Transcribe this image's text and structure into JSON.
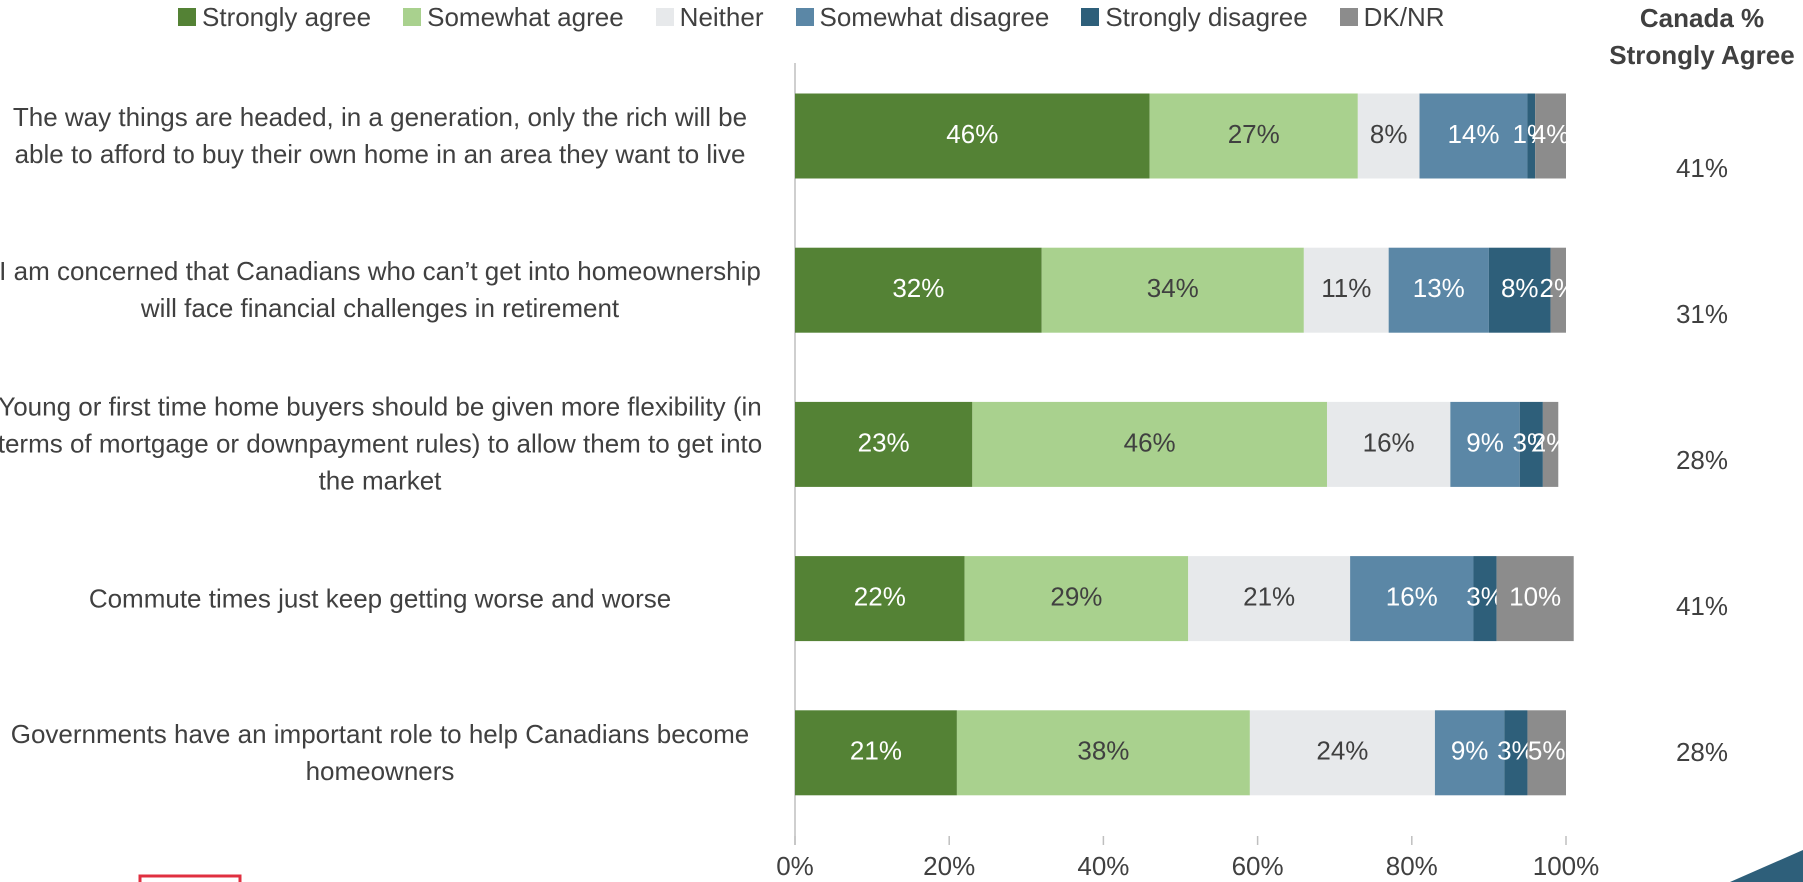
{
  "chart_data": {
    "type": "stacked_bar_horizontal",
    "categories": [
      "The way things are headed, in a generation, only the rich will be able to afford to buy their own home in an area they want to live",
      "I am concerned that Canadians who can’t get into homeownership will face financial challenges in retirement",
      "Young or first time home buyers should be given more flexibility (in terms of mortgage or downpayment rules) to allow them to get into the market",
      "Commute times just keep getting worse and worse",
      "Governments have an important role to help Canadians become homeowners"
    ],
    "series": [
      {
        "name": "Strongly agree",
        "color": "#548235",
        "label_color": "#ffffff",
        "values": [
          46,
          32,
          23,
          22,
          21
        ],
        "value_labels": [
          "46%",
          "32%",
          "23%",
          "22%",
          "21%"
        ]
      },
      {
        "name": "Somewhat agree",
        "color": "#a9d18e",
        "label_color": "#404040",
        "values": [
          27,
          34,
          46,
          29,
          38
        ],
        "value_labels": [
          "27%",
          "34%",
          "46%",
          "29%",
          "38%"
        ]
      },
      {
        "name": "Neither",
        "color": "#e7e9eb",
        "label_color": "#404040",
        "values": [
          8,
          11,
          16,
          21,
          24
        ],
        "value_labels": [
          "8%",
          "11%",
          "16%",
          "21%",
          "24%"
        ]
      },
      {
        "name": "Somewhat disagree",
        "color": "#5b87a6",
        "label_color": "#ffffff",
        "values": [
          14,
          13,
          9,
          16,
          9
        ],
        "value_labels": [
          "14%",
          "13%",
          "9%",
          "16%",
          "9%"
        ]
      },
      {
        "name": "Strongly disagree",
        "color": "#2e5f7a",
        "label_color": "#ffffff",
        "values": [
          1,
          8,
          3,
          3,
          3
        ],
        "value_labels": [
          "1%",
          "8%",
          "3%",
          "3%",
          "3%"
        ]
      },
      {
        "name": "DK/NR",
        "color": "#8c8c8c",
        "label_color": "#ffffff",
        "values": [
          4,
          2,
          2,
          10,
          5
        ],
        "value_labels": [
          "4%",
          "2%",
          "2%",
          "10%",
          "5%"
        ]
      }
    ],
    "xlim": [
      0,
      100
    ],
    "xticks": [
      {
        "value": 0,
        "label": "0%"
      },
      {
        "value": 20,
        "label": "20%"
      },
      {
        "value": 40,
        "label": "40%"
      },
      {
        "value": 60,
        "label": "60%"
      },
      {
        "value": 80,
        "label": "80%"
      },
      {
        "value": 100,
        "label": "100%"
      }
    ],
    "canada": {
      "title": "Canada % Strongly Agree",
      "values": [
        41,
        31,
        28,
        41,
        28
      ],
      "value_labels": [
        "41%",
        "31%",
        "28%",
        "41%",
        "28%"
      ]
    }
  }
}
